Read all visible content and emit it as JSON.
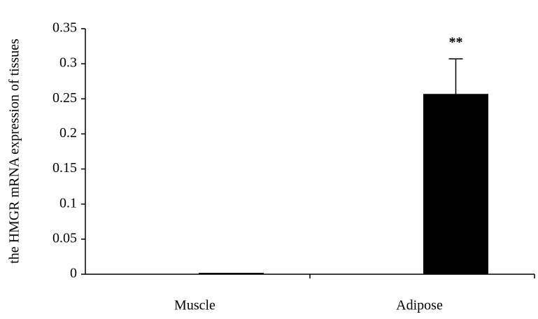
{
  "chart_data": {
    "type": "bar",
    "y_label": "the HMGR mRNA expression of tissues",
    "categories": [
      "Muscle",
      "Adipose"
    ],
    "values": [
      0.002,
      0.257
    ],
    "errors": [
      0,
      0.05
    ],
    "annotations": [
      "",
      "**"
    ],
    "color": "#000000",
    "ylim": [
      0,
      0.35
    ],
    "yticks": [
      0,
      0.05,
      0.1,
      0.15,
      0.2,
      0.25,
      0.3,
      0.35
    ]
  }
}
